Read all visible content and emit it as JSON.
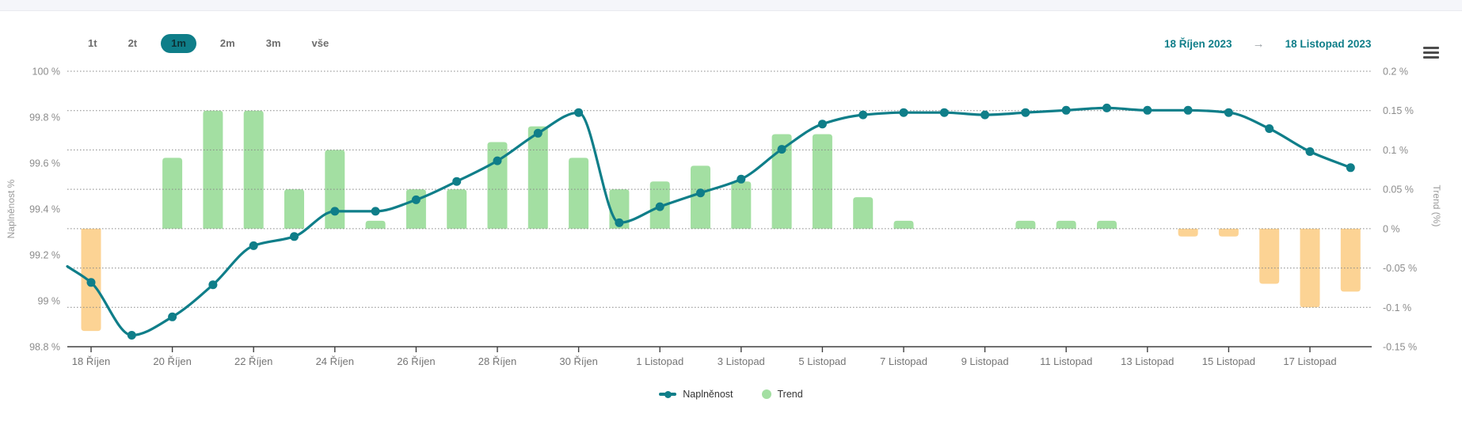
{
  "toolbar": {
    "ranges": [
      {
        "label": "1t",
        "active": false
      },
      {
        "label": "2t",
        "active": false
      },
      {
        "label": "1m",
        "active": true
      },
      {
        "label": "2m",
        "active": false
      },
      {
        "label": "3m",
        "active": false
      },
      {
        "label": "vše",
        "active": false
      }
    ],
    "date_from": "18 Říjen 2023",
    "arrow": "→",
    "date_to": "18 Listopad 2023",
    "menu_icon": "hamburger-icon"
  },
  "colors": {
    "accent_teal": "#0f7e89",
    "bar_positive": "#a3dfa2",
    "bar_negative": "#fcd394",
    "axis_text": "#8c8c8c",
    "x_text": "#757575",
    "axis_line": "#404040",
    "grid": "#888888"
  },
  "chart_data": {
    "type": "line+bar",
    "x": [
      "18 Říjen",
      "19 Říjen",
      "20 Říjen",
      "21 Říjen",
      "22 Říjen",
      "23 Říjen",
      "24 Říjen",
      "25 Říjen",
      "26 Říjen",
      "27 Říjen",
      "28 Říjen",
      "29 Říjen",
      "30 Říjen",
      "31 Říjen",
      "1 Listopad",
      "2 Listopad",
      "3 Listopad",
      "4 Listopad",
      "5 Listopad",
      "6 Listopad",
      "7 Listopad",
      "8 Listopad",
      "9 Listopad",
      "10 Listopad",
      "11 Listopad",
      "12 Listopad",
      "13 Listopad",
      "14 Listopad",
      "15 Listopad",
      "16 Listopad",
      "17 Listopad",
      "18 Listopad"
    ],
    "x_ticks": [
      "18 Říjen",
      "20 Říjen",
      "22 Říjen",
      "24 Říjen",
      "26 Říjen",
      "28 Říjen",
      "30 Říjen",
      "1 Listopad",
      "3 Listopad",
      "5 Listopad",
      "7 Listopad",
      "9 Listopad",
      "11 Listopad",
      "13 Listopad",
      "15 Listopad",
      "17 Listopad"
    ],
    "series": [
      {
        "name": "Naplněnost",
        "type": "line",
        "axis": "left",
        "color": "#0f7e89",
        "lead_in_value": 99.15,
        "values": [
          99.08,
          98.85,
          98.93,
          99.07,
          99.24,
          99.28,
          99.39,
          99.39,
          99.44,
          99.52,
          99.61,
          99.73,
          99.82,
          99.34,
          99.41,
          99.47,
          99.53,
          99.66,
          99.77,
          99.81,
          99.82,
          99.82,
          99.81,
          99.82,
          99.83,
          99.84,
          99.83,
          99.83,
          99.82,
          99.75,
          99.65,
          99.58
        ]
      },
      {
        "name": "Trend",
        "type": "bar",
        "axis": "right",
        "color_positive": "#a3dfa2",
        "color_negative": "#fcd394",
        "values": [
          -0.13,
          0,
          0.09,
          0.15,
          0.15,
          0.05,
          0.1,
          0.01,
          0.05,
          0.05,
          0.11,
          0.13,
          0.09,
          0.05,
          0.06,
          0.08,
          0.06,
          0.12,
          0.12,
          0.04,
          0.01,
          0,
          0,
          0.01,
          0.01,
          0.01,
          0,
          -0.01,
          -0.01,
          -0.07,
          -0.1,
          -0.08
        ]
      }
    ],
    "left_axis": {
      "title": "Naplněnost %",
      "min": 98.8,
      "max": 100,
      "ticks": [
        "100 %",
        "99.8 %",
        "99.6 %",
        "99.4 %",
        "99.2 %",
        "99 %",
        "98.8 %"
      ]
    },
    "right_axis": {
      "title": "Trend (%)",
      "min": -0.15,
      "max": 0.2,
      "ticks": [
        "0.2 %",
        "0.15 %",
        "0.1 %",
        "0.05 %",
        "0 %",
        "-0.05 %",
        "-0.1 %",
        "-0.15 %"
      ]
    },
    "grid": "dotted",
    "legend_position": "bottom-center"
  }
}
